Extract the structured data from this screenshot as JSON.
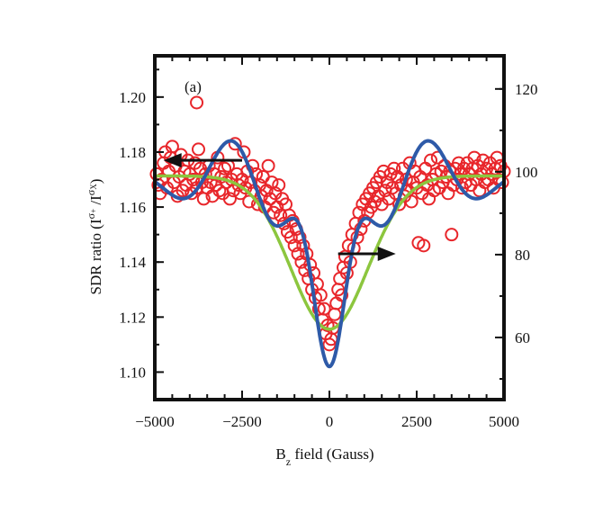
{
  "chart_data": {
    "type": "scatter",
    "panel_label": "(a)",
    "xlabel": {
      "main": "B",
      "sub": "z",
      "rest": " field (Gauss)"
    },
    "ylabel": {
      "prefix": "SDR ratio (I",
      "sup1": "σ",
      "sup1b": "+",
      "mid": " /I",
      "sup2": "σ",
      "sup2b": "X",
      "suffix": ")"
    },
    "xlim": [
      -5000,
      5000
    ],
    "ylim_left": [
      1.09,
      1.215
    ],
    "ylim_right": [
      45,
      128
    ],
    "x_ticks": [
      {
        "value": -5000,
        "label": "−5000"
      },
      {
        "value": -2500,
        "label": "−2500"
      },
      {
        "value": 0,
        "label": "0"
      },
      {
        "value": 2500,
        "label": "2500"
      },
      {
        "value": 5000,
        "label": "5000"
      }
    ],
    "y_ticks_left": [
      {
        "value": 1.1,
        "label": "1.10"
      },
      {
        "value": 1.12,
        "label": "1.12"
      },
      {
        "value": 1.14,
        "label": "1.14"
      },
      {
        "value": 1.16,
        "label": "1.16"
      },
      {
        "value": 1.18,
        "label": "1.18"
      },
      {
        "value": 1.2,
        "label": "1.20"
      }
    ],
    "y_ticks_right": [
      {
        "value": 60,
        "label": "60"
      },
      {
        "value": 80,
        "label": "80"
      },
      {
        "value": 100,
        "label": "100"
      },
      {
        "value": 120,
        "label": "120"
      }
    ],
    "colors": {
      "scatter": "#e8262b",
      "oscillating_fit": "#2e5aa8",
      "lorentzian_fit": "#8cc63e",
      "axes": "#111111",
      "arrow": "#111111"
    },
    "series": [
      {
        "kind": "scatter",
        "axis": "left",
        "points": [
          [
            -4950,
            1.172
          ],
          [
            -4900,
            1.168
          ],
          [
            -4850,
            1.165
          ],
          [
            -4800,
            1.17
          ],
          [
            -4750,
            1.176
          ],
          [
            -4700,
            1.18
          ],
          [
            -4650,
            1.167
          ],
          [
            -4600,
            1.173
          ],
          [
            -4550,
            1.178
          ],
          [
            -4500,
            1.182
          ],
          [
            -4450,
            1.169
          ],
          [
            -4400,
            1.175
          ],
          [
            -4350,
            1.164
          ],
          [
            -4300,
            1.171
          ],
          [
            -4250,
            1.179
          ],
          [
            -4200,
            1.166
          ],
          [
            -4150,
            1.173
          ],
          [
            -4100,
            1.168
          ],
          [
            -4050,
            1.177
          ],
          [
            -4000,
            1.172
          ],
          [
            -3950,
            1.165
          ],
          [
            -3900,
            1.17
          ],
          [
            -3850,
            1.176
          ],
          [
            -3800,
            1.167
          ],
          [
            -3750,
            1.181
          ],
          [
            -3700,
            1.174
          ],
          [
            -3650,
            1.169
          ],
          [
            -3600,
            1.163
          ],
          [
            -3550,
            1.172
          ],
          [
            -3500,
            1.167
          ],
          [
            -3450,
            1.175
          ],
          [
            -3400,
            1.169
          ],
          [
            -3350,
            1.164
          ],
          [
            -3300,
            1.172
          ],
          [
            -3250,
            1.168
          ],
          [
            -3200,
            1.178
          ],
          [
            -3150,
            1.166
          ],
          [
            -3100,
            1.171
          ],
          [
            -3050,
            1.165
          ],
          [
            -3000,
            1.174
          ],
          [
            -2950,
            1.169
          ],
          [
            -2900,
            1.175
          ],
          [
            -2850,
            1.163
          ],
          [
            -2800,
            1.17
          ],
          [
            -2750,
            1.166
          ],
          [
            -2700,
            1.183
          ],
          [
            -2650,
            1.172
          ],
          [
            -2600,
            1.168
          ],
          [
            -2550,
            1.165
          ],
          [
            -2500,
            1.17
          ],
          [
            -2450,
            1.18
          ],
          [
            -2400,
            1.167
          ],
          [
            -2350,
            1.173
          ],
          [
            -2300,
            1.162
          ],
          [
            -2250,
            1.169
          ],
          [
            -2200,
            1.175
          ],
          [
            -2150,
            1.166
          ],
          [
            -2100,
            1.172
          ],
          [
            -2050,
            1.161
          ],
          [
            -2000,
            1.168
          ],
          [
            -1950,
            1.164
          ],
          [
            -1900,
            1.171
          ],
          [
            -1850,
            1.16
          ],
          [
            -1800,
            1.166
          ],
          [
            -1750,
            1.175
          ],
          [
            -1700,
            1.163
          ],
          [
            -1650,
            1.169
          ],
          [
            -1600,
            1.158
          ],
          [
            -1550,
            1.165
          ],
          [
            -1500,
            1.16
          ],
          [
            -1450,
            1.168
          ],
          [
            -1400,
            1.157
          ],
          [
            -1350,
            1.163
          ],
          [
            -1300,
            1.154
          ],
          [
            -1250,
            1.161
          ],
          [
            -1200,
            1.151
          ],
          [
            -1150,
            1.157
          ],
          [
            -1100,
            1.149
          ],
          [
            -1050,
            1.155
          ],
          [
            -1000,
            1.146
          ],
          [
            -950,
            1.152
          ],
          [
            -900,
            1.143
          ],
          [
            -850,
            1.149
          ],
          [
            -800,
            1.14
          ],
          [
            -750,
            1.146
          ],
          [
            -700,
            1.137
          ],
          [
            -650,
            1.143
          ],
          [
            -600,
            1.134
          ],
          [
            -550,
            1.139
          ],
          [
            -500,
            1.13
          ],
          [
            -450,
            1.136
          ],
          [
            -400,
            1.127
          ],
          [
            -350,
            1.132
          ],
          [
            -300,
            1.123
          ],
          [
            -250,
            1.128
          ],
          [
            -200,
            1.119
          ],
          [
            -150,
            1.123
          ],
          [
            -100,
            1.114
          ],
          [
            -50,
            1.117
          ],
          [
            0,
            1.11
          ],
          [
            50,
            1.112
          ],
          [
            100,
            1.116
          ],
          [
            150,
            1.121
          ],
          [
            200,
            1.125
          ],
          [
            250,
            1.13
          ],
          [
            300,
            1.134
          ],
          [
            350,
            1.128
          ],
          [
            400,
            1.138
          ],
          [
            450,
            1.142
          ],
          [
            500,
            1.136
          ],
          [
            550,
            1.146
          ],
          [
            600,
            1.14
          ],
          [
            650,
            1.15
          ],
          [
            700,
            1.145
          ],
          [
            750,
            1.154
          ],
          [
            800,
            1.149
          ],
          [
            850,
            1.158
          ],
          [
            900,
            1.152
          ],
          [
            950,
            1.161
          ],
          [
            1000,
            1.155
          ],
          [
            1050,
            1.163
          ],
          [
            1100,
            1.158
          ],
          [
            1150,
            1.165
          ],
          [
            1200,
            1.16
          ],
          [
            1250,
            1.167
          ],
          [
            1300,
            1.162
          ],
          [
            1350,
            1.169
          ],
          [
            1400,
            1.164
          ],
          [
            1450,
            1.171
          ],
          [
            1500,
            1.161
          ],
          [
            1550,
            1.173
          ],
          [
            1600,
            1.166
          ],
          [
            1650,
            1.169
          ],
          [
            1700,
            1.163
          ],
          [
            1750,
            1.172
          ],
          [
            1800,
            1.167
          ],
          [
            1850,
            1.174
          ],
          [
            1900,
            1.165
          ],
          [
            1950,
            1.171
          ],
          [
            2000,
            1.161
          ],
          [
            2050,
            1.168
          ],
          [
            2100,
            1.174
          ],
          [
            2150,
            1.164
          ],
          [
            2200,
            1.17
          ],
          [
            2250,
            1.166
          ],
          [
            2300,
            1.176
          ],
          [
            2350,
            1.162
          ],
          [
            2400,
            1.169
          ],
          [
            2450,
            1.173
          ],
          [
            2500,
            1.167
          ],
          [
            2550,
            1.147
          ],
          [
            2600,
            1.171
          ],
          [
            2650,
            1.165
          ],
          [
            2700,
            1.146
          ],
          [
            2750,
            1.174
          ],
          [
            2800,
            1.168
          ],
          [
            2850,
            1.163
          ],
          [
            2900,
            1.177
          ],
          [
            2950,
            1.17
          ],
          [
            3000,
            1.166
          ],
          [
            3050,
            1.172
          ],
          [
            3100,
            1.178
          ],
          [
            3150,
            1.167
          ],
          [
            3200,
            1.173
          ],
          [
            3250,
            1.169
          ],
          [
            3300,
            1.175
          ],
          [
            3350,
            1.171
          ],
          [
            3400,
            1.165
          ],
          [
            3450,
            1.173
          ],
          [
            3500,
            1.15
          ],
          [
            3550,
            1.168
          ],
          [
            3600,
            1.174
          ],
          [
            3650,
            1.17
          ],
          [
            3700,
            1.176
          ],
          [
            3750,
            1.172
          ],
          [
            3800,
            1.167
          ],
          [
            3850,
            1.174
          ],
          [
            3900,
            1.169
          ],
          [
            3950,
            1.176
          ],
          [
            4000,
            1.172
          ],
          [
            4050,
            1.168
          ],
          [
            4100,
            1.174
          ],
          [
            4150,
            1.178
          ],
          [
            4200,
            1.17
          ],
          [
            4250,
            1.175
          ],
          [
            4300,
            1.166
          ],
          [
            4350,
            1.172
          ],
          [
            4400,
            1.177
          ],
          [
            4450,
            1.169
          ],
          [
            4500,
            1.174
          ],
          [
            4550,
            1.17
          ],
          [
            4600,
            1.176
          ],
          [
            4650,
            1.172
          ],
          [
            4700,
            1.167
          ],
          [
            4750,
            1.174
          ],
          [
            4800,
            1.178
          ],
          [
            4850,
            1.17
          ],
          [
            4900,
            1.175
          ],
          [
            4950,
            1.169
          ],
          [
            5000,
            1.173
          ],
          [
            -3800,
            1.198
          ]
        ]
      },
      {
        "kind": "line",
        "axis": "right",
        "name": "oscillating-fit",
        "model": {
          "baseline": 98,
          "depth": 45,
          "width": 480,
          "amplitude": 12,
          "period": 2900
        }
      },
      {
        "kind": "line",
        "axis": "right",
        "name": "lorentzian-fit",
        "model": {
          "baseline": 99,
          "depth": 37,
          "width": 1100
        }
      }
    ],
    "annotations": [
      {
        "kind": "arrow",
        "direction": "left",
        "from": [
          -2500,
          1.177
        ],
        "to": [
          -4750,
          1.177
        ]
      },
      {
        "kind": "arrow",
        "direction": "right",
        "from": [
          250,
          1.143
        ],
        "to": [
          1900,
          1.143
        ]
      }
    ]
  }
}
